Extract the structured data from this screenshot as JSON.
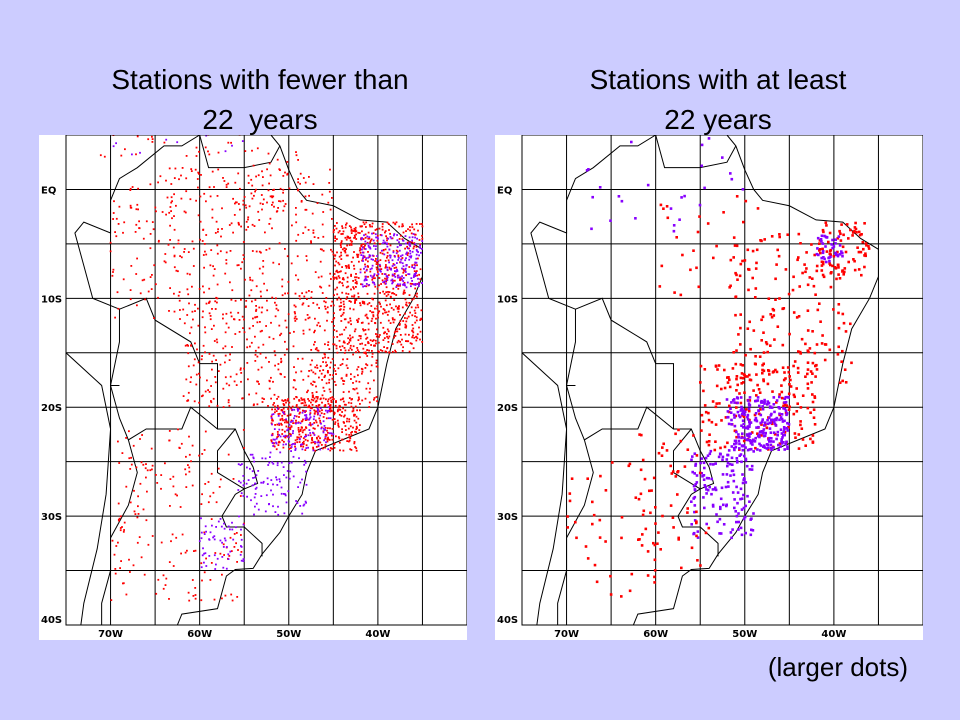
{
  "panels": [
    {
      "id": "left",
      "title_lines": [
        "Stations with fewer than",
        "22  years"
      ]
    },
    {
      "id": "right",
      "title_lines": [
        "Stations with at least",
        "22 years"
      ]
    }
  ],
  "footnote": "(larger dots)",
  "map": {
    "lon_range": [
      -75,
      -30
    ],
    "lat_range": [
      -40,
      5
    ],
    "grid_step_deg": 5,
    "lat_labels": [
      {
        "lat": 0,
        "text": "EQ"
      },
      {
        "lat": -10,
        "text": "10S"
      },
      {
        "lat": -20,
        "text": "20S"
      },
      {
        "lat": -30,
        "text": "30S"
      },
      {
        "lat": -40,
        "text": "40S"
      }
    ],
    "lon_labels": [
      {
        "lon": -70,
        "text": "70W"
      },
      {
        "lon": -60,
        "text": "60W"
      },
      {
        "lon": -50,
        "text": "50W"
      },
      {
        "lon": -40,
        "text": "40W"
      }
    ],
    "colors": {
      "series_a": "#FF0000",
      "series_b": "#8800FF",
      "outline": "#000000",
      "grid": "#000000",
      "frame": "#000000"
    }
  }
}
